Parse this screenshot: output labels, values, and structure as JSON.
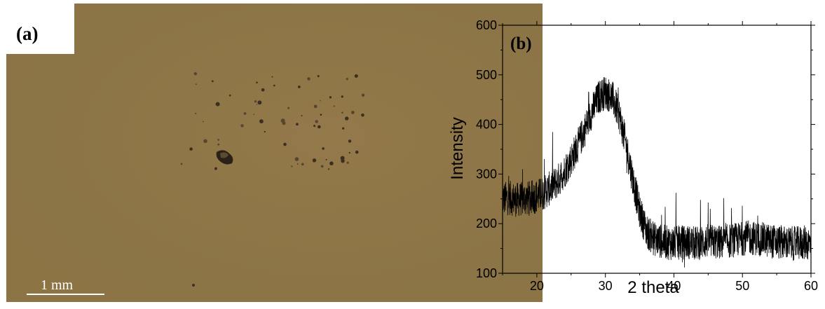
{
  "panel_a": {
    "label": "(a)",
    "scale_bar_label": "1 mm",
    "colors": {
      "background": "#8d7648",
      "label_box": "#ffffff",
      "scale_bar": "#ffffff"
    }
  },
  "chart_data": {
    "type": "line",
    "panel_label": "(b)",
    "title": "",
    "xlabel": "2 theta",
    "ylabel": "Intensity",
    "xlim": [
      15,
      60
    ],
    "ylim": [
      100,
      600
    ],
    "xticks": [
      20,
      30,
      40,
      50,
      60
    ],
    "yticks": [
      100,
      200,
      300,
      400,
      500,
      600
    ],
    "grid": false,
    "legend": "none",
    "series_color": "#000000",
    "series": [
      {
        "x": [
          15,
          16,
          17,
          18,
          19,
          20,
          21,
          22,
          23,
          24,
          25,
          26,
          27,
          28,
          29,
          30,
          31,
          32,
          33,
          34,
          35,
          36,
          37,
          38,
          39,
          40,
          41,
          42,
          43,
          44,
          45,
          46,
          47,
          48,
          49,
          50,
          51,
          52,
          53,
          54,
          55,
          56,
          57,
          58,
          59,
          60
        ],
        "y": [
          250,
          252,
          248,
          250,
          252,
          255,
          262,
          272,
          285,
          305,
          330,
          358,
          390,
          425,
          455,
          465,
          455,
          420,
          360,
          290,
          225,
          185,
          170,
          165,
          162,
          160,
          162,
          163,
          160,
          162,
          165,
          163,
          162,
          165,
          167,
          170,
          172,
          170,
          168,
          165,
          163,
          162,
          160,
          160,
          162,
          160
        ]
      }
    ]
  }
}
